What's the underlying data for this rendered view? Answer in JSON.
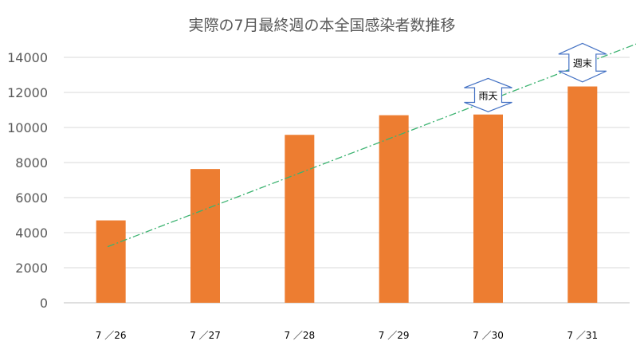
{
  "chart_data": {
    "type": "bar",
    "title": "実際の7月最終週の本全国感染者数推移",
    "xlabel": "",
    "ylabel": "",
    "categories": [
      "7 ／26",
      "7 ／27",
      "7 ／28",
      "7 ／29",
      "7 ／30",
      "7 ／31"
    ],
    "values": [
      4700,
      7630,
      9580,
      10700,
      10740,
      12340
    ],
    "ylim": [
      0,
      14000
    ],
    "yticks": [
      0,
      2000,
      4000,
      6000,
      8000,
      10000,
      12000,
      14000
    ],
    "grid": true,
    "legend": "none",
    "bar_color": "#ED7D31",
    "trendline": {
      "style": "dash-dot",
      "color": "#3CB371",
      "start": {
        "x": 0.55,
        "y": 3200
      },
      "end": {
        "x": 6.55,
        "y": 16000
      }
    },
    "annotations": [
      {
        "category": "7 ／30",
        "text": "雨天",
        "y_top": 12800,
        "y_bottom": 10900
      },
      {
        "category": "7 ／31",
        "text": "週末",
        "y_top": 14800,
        "y_bottom": 12600
      }
    ]
  }
}
